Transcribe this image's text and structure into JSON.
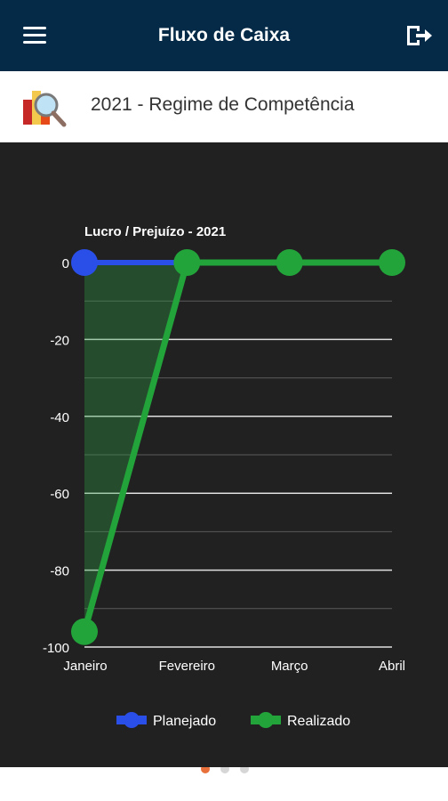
{
  "app": {
    "title": "Fluxo de Caixa"
  },
  "header": {
    "subtitle": "2021 - Regime de Competência"
  },
  "icons": {
    "menu": "hamburger-icon",
    "logout": "logout-icon",
    "logo": "report-magnifier-icon"
  },
  "colors": {
    "appbar": "#042a47",
    "chartBg": "#212121",
    "planejado": "#2a4ee8",
    "realizado": "#22a43a",
    "dotActive": "#e8703a",
    "dotInactive": "#d6d6d6"
  },
  "chart_data": {
    "type": "line",
    "title": "Lucro / Prejuízo - 2021",
    "categories": [
      "Janeiro",
      "Fevereiro",
      "Março",
      "Abril"
    ],
    "series": [
      {
        "name": "Planejado",
        "values": [
          0,
          0,
          0,
          0
        ]
      },
      {
        "name": "Realizado",
        "values": [
          -96,
          0,
          0,
          0
        ]
      }
    ],
    "ylim": [
      -100,
      0
    ],
    "yticks": [
      0,
      -20,
      -40,
      -60,
      -80,
      -100
    ],
    "grid": true,
    "legend": "bottom"
  },
  "pager": {
    "count": 3,
    "active": 0
  }
}
